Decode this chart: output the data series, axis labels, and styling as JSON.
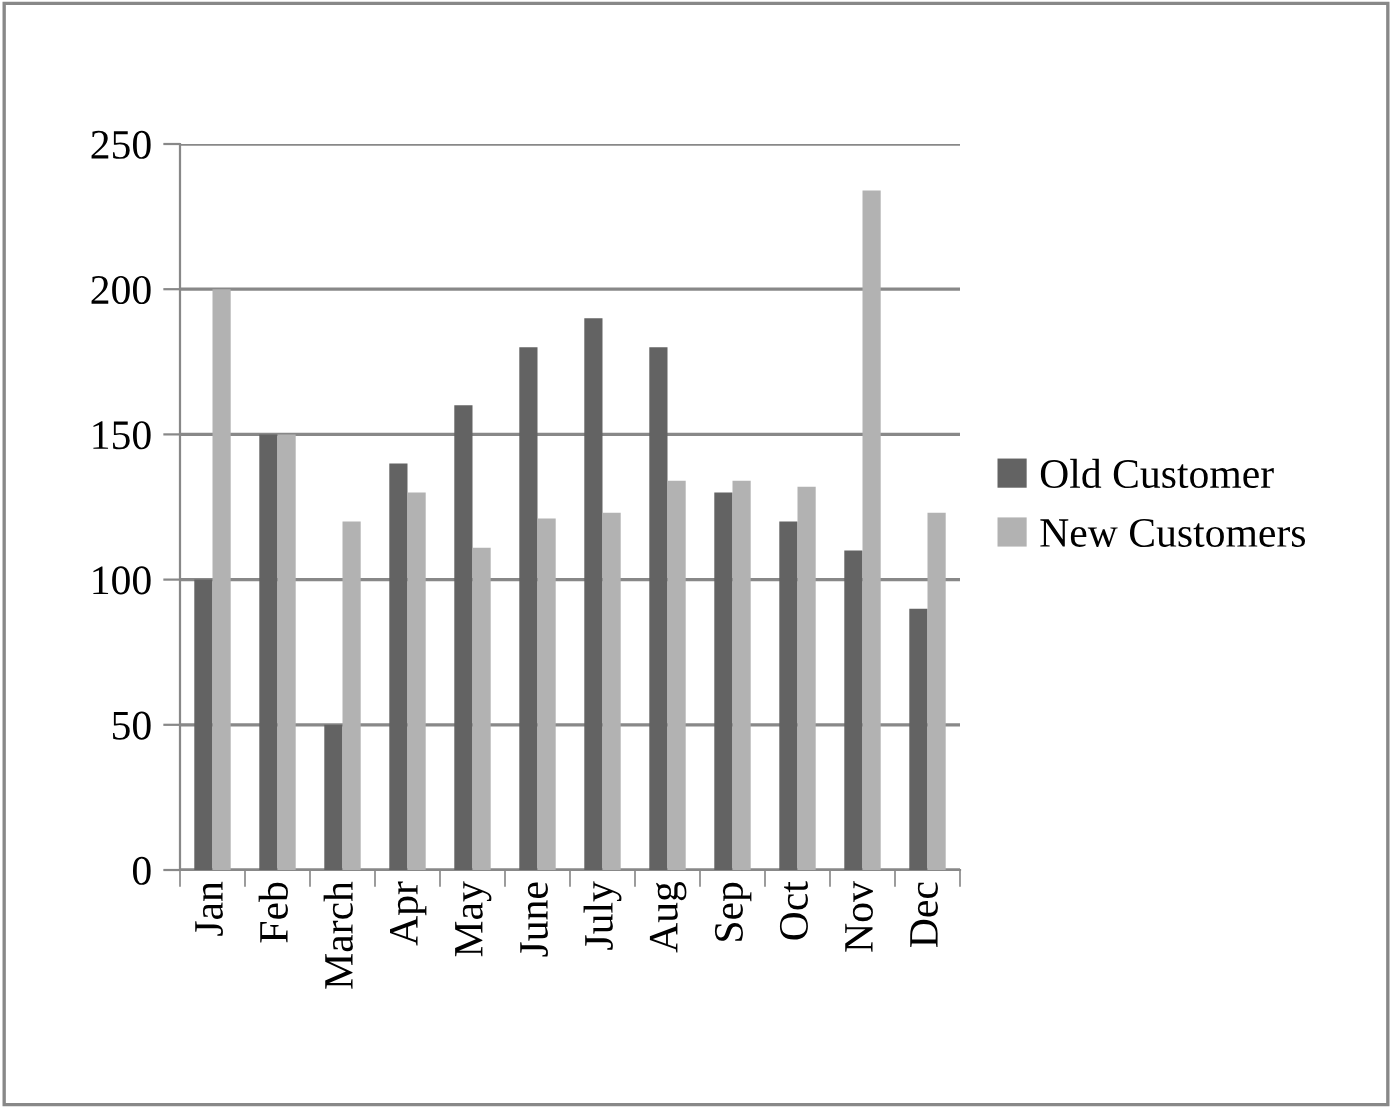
{
  "chart_data": {
    "type": "bar",
    "categories": [
      "Jan",
      "Feb",
      "March",
      "Apr",
      "May",
      "June",
      "July",
      "Aug",
      "Sep",
      "Oct",
      "Nov",
      "Dec"
    ],
    "series": [
      {
        "name": "Old Customer",
        "color": "#636363",
        "values": [
          100,
          150,
          50,
          140,
          160,
          180,
          190,
          180,
          130,
          120,
          110,
          90
        ]
      },
      {
        "name": "New Customers",
        "color": "#b2b2b2",
        "values": [
          200,
          150,
          120,
          130,
          111,
          121,
          123,
          134,
          134,
          132,
          234,
          123
        ]
      }
    ],
    "ylim": [
      0,
      250
    ],
    "yticks": [
      0,
      50,
      100,
      150,
      200,
      250
    ],
    "grid": "y",
    "legend": "right"
  }
}
